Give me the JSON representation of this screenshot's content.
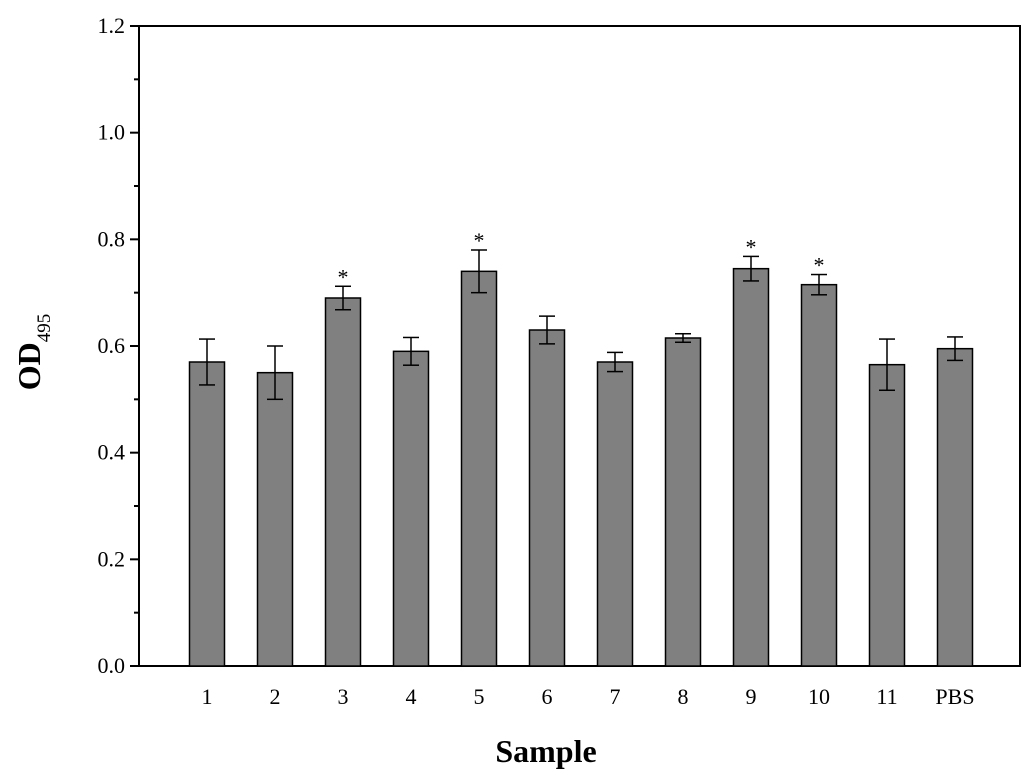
{
  "chart_data": {
    "type": "bar",
    "title": "",
    "xlabel": "Sample",
    "ylabel": {
      "main": "OD",
      "subscript": "495"
    },
    "categories": [
      "1",
      "2",
      "3",
      "4",
      "5",
      "6",
      "7",
      "8",
      "9",
      "10",
      "11",
      "PBS"
    ],
    "values": [
      0.57,
      0.55,
      0.69,
      0.59,
      0.74,
      0.63,
      0.57,
      0.615,
      0.745,
      0.715,
      0.565,
      0.595
    ],
    "errors": [
      0.043,
      0.05,
      0.022,
      0.026,
      0.04,
      0.026,
      0.018,
      0.008,
      0.023,
      0.019,
      0.048,
      0.022
    ],
    "significance": [
      "",
      "",
      "*",
      "",
      "*",
      "",
      "",
      "",
      "*",
      "*",
      "",
      ""
    ],
    "ylim": [
      0,
      1.2
    ],
    "yticks": [
      "0.0",
      "0.2",
      "0.4",
      "0.6",
      "0.8",
      "1.0",
      "1.2"
    ],
    "ytick_values": [
      0,
      0.2,
      0.4,
      0.6,
      0.8,
      1.0,
      1.2
    ],
    "grid": false,
    "legend": "none",
    "colors": {
      "bar": "#808080",
      "outline": "#000000"
    }
  }
}
